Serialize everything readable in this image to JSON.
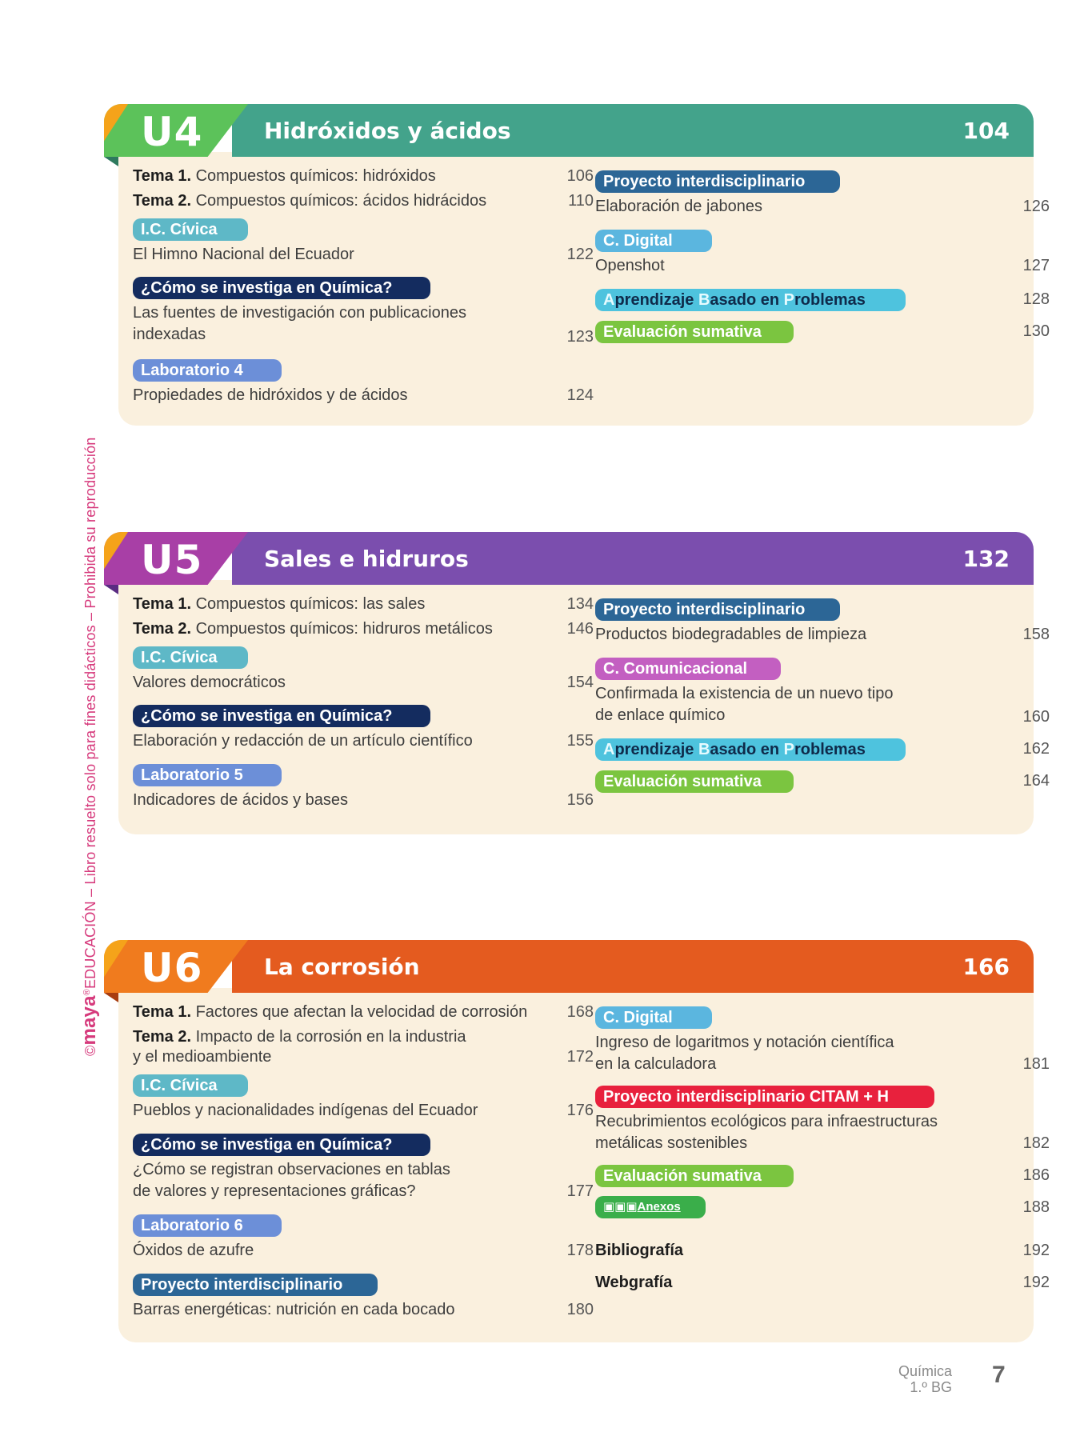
{
  "side_text": {
    "brand": "maya",
    "text": "EDUCACIÓN – Libro resuelto solo para fines didácticos – Prohibida su reproducción",
    "copyright": "©",
    "reg": "®"
  },
  "colors": {
    "u4": "#43a38b",
    "u4_left": "#5cc25a",
    "u5": "#7b4eae",
    "u5_left": "#a83fa6",
    "u6": "#e45b1f",
    "u6_left": "#f07b1e",
    "tip": "#f5a31a",
    "tag_civica": "#5eb8c7",
    "tag_investiga": "#142c5f",
    "tag_lab": "#6c8fd8",
    "tag_proyecto": "#2c6696",
    "tag_digital": "#5bb6df",
    "tag_abp": "#4ec3de",
    "tag_eval": "#7bc540",
    "tag_comunicacional": "#c35fc1",
    "tag_citam": "#e8213d",
    "tag_anexos": "#3aae4a",
    "panel": "#faf0de"
  },
  "units": {
    "u4": {
      "code": "U4",
      "title": "Hidróxidos y ácidos",
      "page": "104",
      "left": {
        "tema1_label": "Tema 1.",
        "tema1_text": "Compuestos químicos: hidróxidos",
        "tema1_page": "106",
        "tema2_label": "Tema 2.",
        "tema2_text": "Compuestos químicos: ácidos hidrácidos",
        "tema2_page": "110",
        "civica_tag": "I.C. Cívica",
        "civica_text": "El Himno Nacional del Ecuador",
        "civica_page": "122",
        "investiga_tag": "¿Cómo se investiga en Química?",
        "investiga_text1": "Las fuentes de investigación con publicaciones",
        "investiga_text2": "indexadas",
        "investiga_page": "123",
        "lab_tag": "Laboratorio 4",
        "lab_text": "Propiedades de hidróxidos y de ácidos",
        "lab_page": "124"
      },
      "right": {
        "proyecto_tag": "Proyecto interdisciplinario",
        "proyecto_text": "Elaboración de jabones",
        "proyecto_page": "126",
        "digital_tag": "C. Digital",
        "digital_text": "Openshot",
        "digital_page": "127",
        "abp_a": "A",
        "abp_1": "prendizaje ",
        "abp_b": "B",
        "abp_2": "asado en ",
        "abp_p": "P",
        "abp_3": "roblemas",
        "abp_page": "128",
        "eval_tag": "Evaluación sumativa",
        "eval_page": "130"
      }
    },
    "u5": {
      "code": "U5",
      "title": "Sales e hidruros",
      "page": "132",
      "left": {
        "tema1_label": "Tema 1.",
        "tema1_text": "Compuestos químicos: las sales",
        "tema1_page": "134",
        "tema2_label": "Tema 2.",
        "tema2_text": "Compuestos químicos: hidruros metálicos",
        "tema2_page": "146",
        "civica_tag": "I.C. Cívica",
        "civica_text": "Valores democráticos",
        "civica_page": "154",
        "investiga_tag": "¿Cómo se investiga en Química?",
        "investiga_text": "Elaboración y redacción de un artículo científico",
        "investiga_page": "155",
        "lab_tag": "Laboratorio 5",
        "lab_text": "Indicadores de ácidos y bases",
        "lab_page": "156"
      },
      "right": {
        "proyecto_tag": "Proyecto interdisciplinario",
        "proyecto_text": "Productos biodegradables de limpieza",
        "proyecto_page": "158",
        "comunicacional_tag": "C. Comunicacional",
        "comunicacional_text1": "Confirmada la existencia de un nuevo tipo",
        "comunicacional_text2": "de enlace químico",
        "comunicacional_page": "160",
        "abp_a": "A",
        "abp_1": "prendizaje ",
        "abp_b": "B",
        "abp_2": "asado en ",
        "abp_p": "P",
        "abp_3": "roblemas",
        "abp_page": "162",
        "eval_tag": "Evaluación sumativa",
        "eval_page": "164"
      }
    },
    "u6": {
      "code": "U6",
      "title": "La corrosión",
      "page": "166",
      "left": {
        "tema1_label": "Tema 1.",
        "tema1_text": "Factores que afectan la velocidad de corrosión",
        "tema1_page": "168",
        "tema2_label": "Tema 2.",
        "tema2_text1": "Impacto de la corrosión en la industria",
        "tema2_text2": "y el medioambiente",
        "tema2_page": "172",
        "civica_tag": "I.C. Cívica",
        "civica_text": "Pueblos y nacionalidades indígenas del Ecuador",
        "civica_page": "176",
        "investiga_tag": "¿Cómo se investiga en Química?",
        "investiga_text1": "¿Cómo se registran observaciones en tablas",
        "investiga_text2": "de valores y representaciones gráficas?",
        "investiga_page": "177",
        "lab_tag": "Laboratorio 6",
        "lab_text": "Óxidos de azufre",
        "lab_page": "178",
        "proyecto_tag": "Proyecto interdisciplinario",
        "proyecto_text": "Barras energéticas: nutrición en cada bocado",
        "proyecto_page": "180"
      },
      "right": {
        "digital_tag": "C. Digital",
        "digital_text1": "Ingreso de logaritmos y notación científica",
        "digital_text2": "en la calculadora",
        "digital_page": "181",
        "citam_tag": "Proyecto interdisciplinario CITAM + H",
        "citam_text1": "Recubrimientos ecológicos para infraestructuras",
        "citam_text2": "metálicas sostenibles",
        "citam_page": "182",
        "eval_tag": "Evaluación sumativa",
        "eval_page": "186",
        "anexos_tag": "Anexos",
        "anexos_page": "188",
        "biblio": "Bibliografía",
        "biblio_page": "192",
        "web": "Webgrafía",
        "web_page": "192"
      }
    }
  },
  "footer": {
    "subject": "Química",
    "grade": "1.º BG",
    "page_number": "7"
  }
}
